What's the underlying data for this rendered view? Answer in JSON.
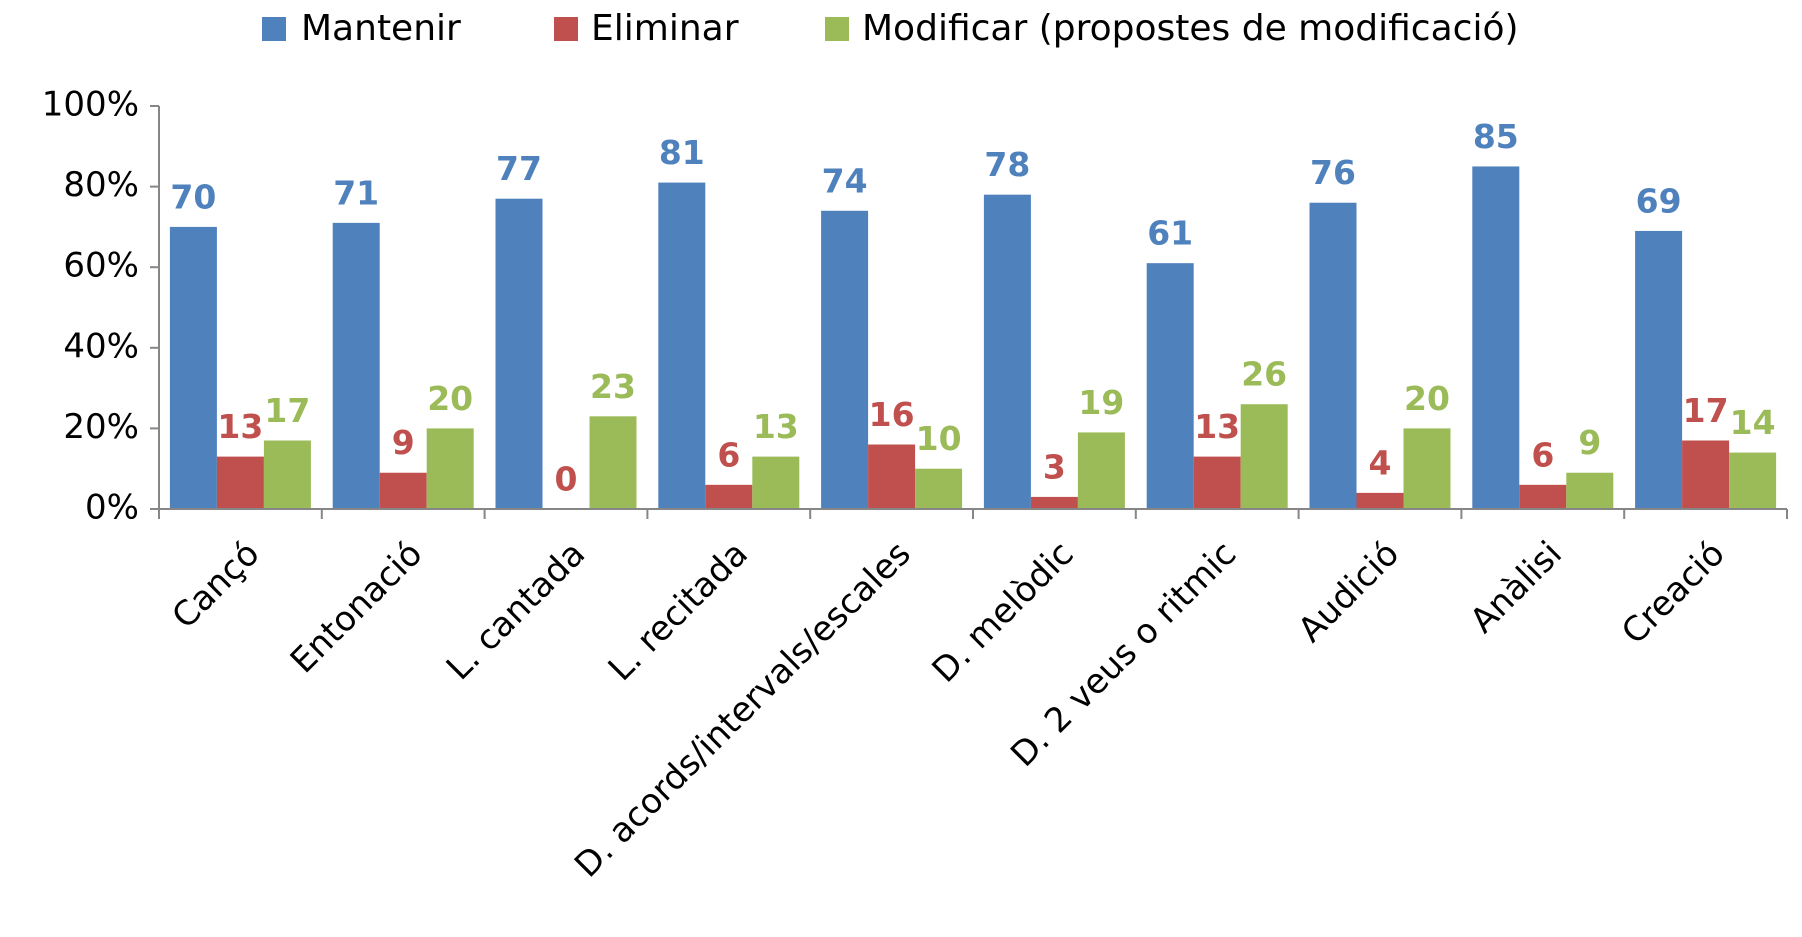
{
  "chart_data": {
    "type": "bar",
    "categories": [
      "Cançó",
      "Entonació",
      "L. cantada",
      "L. recitada",
      "D. acords/intervals/escales",
      "D. melòdic",
      "D. 2 veus o ritmic",
      "Audició",
      "Anàlisi",
      "Creació"
    ],
    "series": [
      {
        "name": "Mantenir",
        "color": "#4f81bd",
        "values": [
          70,
          71,
          77,
          81,
          74,
          78,
          61,
          76,
          85,
          69
        ]
      },
      {
        "name": "Eliminar",
        "color": "#c0504d",
        "values": [
          13,
          9,
          0,
          6,
          16,
          3,
          13,
          4,
          6,
          17
        ]
      },
      {
        "name": "Modificar (propostes de modificació)",
        "color": "#9bbb59",
        "values": [
          17,
          20,
          23,
          13,
          10,
          19,
          26,
          20,
          9,
          14
        ]
      }
    ],
    "ylim": [
      0,
      100
    ],
    "yticks": [
      {
        "value": 0,
        "label": "0%"
      },
      {
        "value": 20,
        "label": "20%"
      },
      {
        "value": 40,
        "label": "40%"
      },
      {
        "value": 60,
        "label": "60%"
      },
      {
        "value": 80,
        "label": "80%"
      },
      {
        "value": 100,
        "label": "100%"
      }
    ],
    "legend": "top",
    "grid": false
  }
}
